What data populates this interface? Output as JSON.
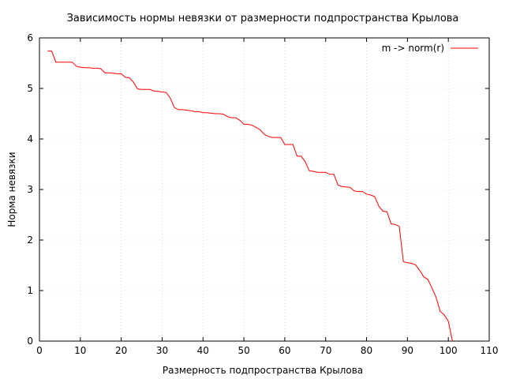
{
  "chart_data": {
    "type": "line",
    "title": "Зависимость нормы невязки от размерности подпространства Крылова",
    "xlabel": "Размерность подпространства Крылова",
    "ylabel": "Норма невязки",
    "xlim": [
      0,
      110
    ],
    "ylim": [
      0,
      6
    ],
    "xticks": [
      0,
      10,
      20,
      30,
      40,
      50,
      60,
      70,
      80,
      90,
      100,
      110
    ],
    "yticks": [
      0,
      1,
      2,
      3,
      4,
      5,
      6
    ],
    "grid": true,
    "legend_position": "top-right",
    "series": [
      {
        "name": "m -> norm(r)",
        "color": "#ff0000",
        "x": [
          2,
          3,
          4,
          5,
          6,
          7,
          8,
          9,
          10,
          11,
          12,
          13,
          14,
          15,
          16,
          17,
          18,
          19,
          20,
          21,
          22,
          23,
          24,
          25,
          26,
          27,
          28,
          29,
          30,
          31,
          32,
          33,
          34,
          35,
          36,
          37,
          38,
          39,
          40,
          41,
          42,
          43,
          44,
          45,
          46,
          47,
          48,
          49,
          50,
          51,
          52,
          53,
          54,
          55,
          56,
          57,
          58,
          59,
          60,
          61,
          62,
          63,
          64,
          65,
          66,
          67,
          68,
          69,
          70,
          71,
          72,
          73,
          74,
          75,
          76,
          77,
          78,
          79,
          80,
          81,
          82,
          83,
          84,
          85,
          86,
          87,
          88,
          89,
          90,
          91,
          92,
          93,
          94,
          95,
          96,
          97,
          98,
          99,
          100,
          101
        ],
        "y": [
          5.74,
          5.74,
          5.52,
          5.52,
          5.52,
          5.52,
          5.52,
          5.44,
          5.42,
          5.41,
          5.41,
          5.4,
          5.4,
          5.39,
          5.31,
          5.31,
          5.3,
          5.29,
          5.29,
          5.22,
          5.21,
          5.12,
          4.99,
          4.98,
          4.98,
          4.98,
          4.95,
          4.94,
          4.93,
          4.92,
          4.81,
          4.62,
          4.58,
          4.58,
          4.57,
          4.56,
          4.54,
          4.54,
          4.52,
          4.52,
          4.51,
          4.5,
          4.5,
          4.49,
          4.44,
          4.42,
          4.42,
          4.37,
          4.29,
          4.29,
          4.27,
          4.23,
          4.18,
          4.09,
          4.05,
          4.03,
          4.03,
          4.03,
          3.89,
          3.89,
          3.89,
          3.66,
          3.66,
          3.55,
          3.37,
          3.36,
          3.34,
          3.34,
          3.34,
          3.3,
          3.3,
          3.09,
          3.06,
          3.05,
          3.04,
          2.97,
          2.96,
          2.96,
          2.91,
          2.89,
          2.86,
          2.67,
          2.57,
          2.56,
          2.32,
          2.31,
          2.27,
          1.57,
          1.55,
          1.54,
          1.51,
          1.4,
          1.27,
          1.22,
          1.05,
          0.87,
          0.59,
          0.52,
          0.39,
          0.0
        ]
      }
    ]
  }
}
